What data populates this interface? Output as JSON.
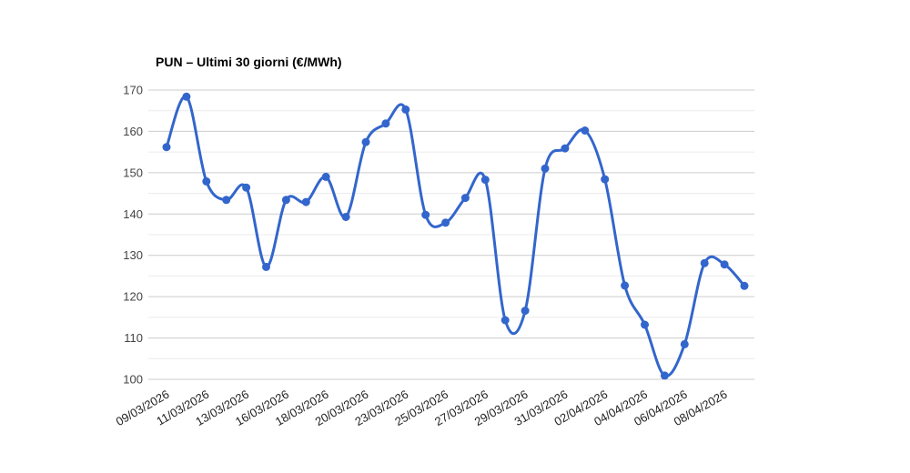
{
  "chart_data": {
    "type": "line",
    "title": "PUN – Ultimi 30 giorni (€/MWh)",
    "xlabel": "",
    "ylabel": "",
    "ylim": [
      100,
      170
    ],
    "y_ticks": [
      100,
      110,
      120,
      130,
      140,
      150,
      160,
      170
    ],
    "y_minor_ticks": [
      105,
      115,
      125,
      135,
      145,
      155,
      165
    ],
    "grid": "horizontal",
    "legend_position": "none",
    "smooth": true,
    "marker": "circle",
    "x_tick_rotation": -30,
    "tick_every": 2,
    "x_tick_labels": [
      "09/03/2026",
      "11/03/2026",
      "13/03/2026",
      "16/03/2026",
      "18/03/2026",
      "20/03/2026",
      "23/03/2026",
      "25/03/2026",
      "27/03/2026",
      "29/03/2026",
      "31/03/2026",
      "02/04/2026",
      "04/04/2026",
      "06/04/2026",
      "08/04/2026"
    ],
    "values": [
      156.2,
      168.4,
      147.9,
      143.4,
      146.4,
      127.2,
      143.4,
      142.9,
      149.0,
      139.3,
      157.4,
      161.9,
      165.3,
      139.8,
      137.9,
      143.9,
      148.3,
      114.3,
      116.6,
      151.0,
      155.9,
      160.2,
      148.4,
      122.7,
      113.2,
      100.9,
      108.5,
      128.1,
      127.8,
      122.6
    ],
    "colors": {
      "line": "#3366cc",
      "point": "#3366cc",
      "grid_major": "#cccccc",
      "grid_minor": "#ebebeb",
      "y_axis_text": "#444444",
      "x_axis_text": "#222222",
      "title_text": "#000000",
      "background": "#ffffff"
    }
  }
}
